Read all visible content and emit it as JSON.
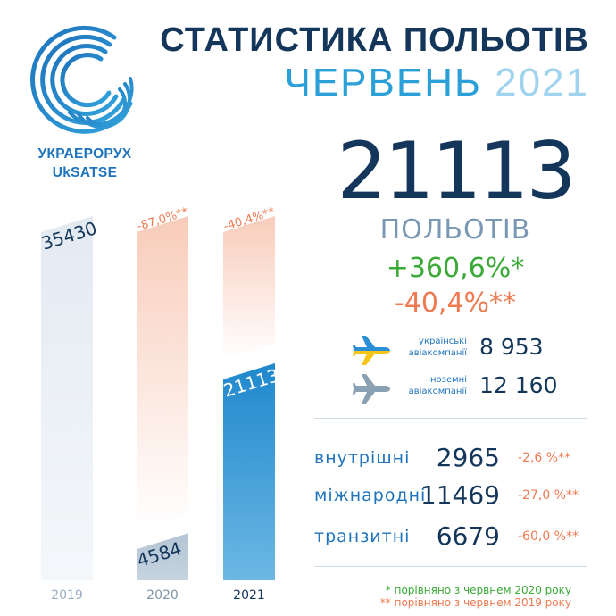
{
  "logo": {
    "name_line1": "УКРАЕРОРУХ",
    "name_line2": "UkSATSE"
  },
  "header": {
    "title": "СТАТИСТИКА ПОЛЬОТІВ",
    "month": "ЧЕРВЕНЬ",
    "year": "2021"
  },
  "summary": {
    "total": "21113",
    "label": "ПОЛЬОТІВ",
    "change_vs_2020": "+360,6%*",
    "change_vs_2019": "-40,4%**"
  },
  "airlines": [
    {
      "label_line1": "українські",
      "label_line2": "авіакомпанії",
      "value": "8 953",
      "icon": "plane-icon-ukraine"
    },
    {
      "label_line1": "іноземні",
      "label_line2": "авіакомпанії",
      "value": "12 160",
      "icon": "plane-icon-foreign"
    }
  ],
  "categories": [
    {
      "name": "внутрішні",
      "value": "2965",
      "change": "-2,6 %**"
    },
    {
      "name": "міжнародні",
      "value": "11469",
      "change": "-27,0 %**"
    },
    {
      "name": "транзитні",
      "value": "6679",
      "change": "-60,0 %**"
    }
  ],
  "footnotes": {
    "note1": "* порівняно з червнем 2020 року",
    "note2": "** порівняно з червнем 2019 року"
  },
  "colors": {
    "navy": "#13365a",
    "blue": "#1e74bd",
    "bar_2019": "#e7edf4",
    "bar_2020": "#b9c8d6",
    "bar_2021": "#2f95d4",
    "ghost": "#f7c9b7",
    "green": "#3aa935",
    "orange": "#ef7a52"
  },
  "chart_data": {
    "type": "bar",
    "categories": [
      "2019",
      "2020",
      "2021"
    ],
    "values": [
      35430,
      4584,
      21113
    ],
    "value_labels": [
      "35430",
      "4584",
      "21113"
    ],
    "annotations": [
      {
        "category": "2020",
        "text": "-87,0%**"
      },
      {
        "category": "2021",
        "text": "-40,4%**"
      }
    ],
    "ylim": [
      0,
      35430
    ],
    "grid": false,
    "legend": "none"
  }
}
